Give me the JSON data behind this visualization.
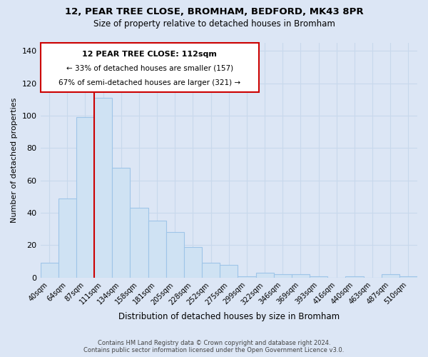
{
  "title": "12, PEAR TREE CLOSE, BROMHAM, BEDFORD, MK43 8PR",
  "subtitle": "Size of property relative to detached houses in Bromham",
  "xlabel": "Distribution of detached houses by size in Bromham",
  "ylabel": "Number of detached properties",
  "bar_labels": [
    "40sqm",
    "64sqm",
    "87sqm",
    "111sqm",
    "134sqm",
    "158sqm",
    "181sqm",
    "205sqm",
    "228sqm",
    "252sqm",
    "275sqm",
    "299sqm",
    "322sqm",
    "346sqm",
    "369sqm",
    "393sqm",
    "416sqm",
    "440sqm",
    "463sqm",
    "487sqm",
    "510sqm"
  ],
  "bar_values": [
    9,
    49,
    99,
    111,
    68,
    43,
    35,
    28,
    19,
    9,
    8,
    1,
    3,
    2,
    2,
    1,
    0,
    1,
    0,
    2,
    1
  ],
  "bar_color": "#cfe2f3",
  "bar_edge_color": "#9fc5e8",
  "highlight_line_index": 3,
  "highlight_line_color": "#cc0000",
  "ylim": [
    0,
    145
  ],
  "yticks": [
    0,
    20,
    40,
    60,
    80,
    100,
    120,
    140
  ],
  "annotation_title": "12 PEAR TREE CLOSE: 112sqm",
  "annotation_line1": "← 33% of detached houses are smaller (157)",
  "annotation_line2": "67% of semi-detached houses are larger (321) →",
  "annotation_box_color": "#ffffff",
  "annotation_box_edge": "#cc0000",
  "footer_line1": "Contains HM Land Registry data © Crown copyright and database right 2024.",
  "footer_line2": "Contains public sector information licensed under the Open Government Licence v3.0.",
  "background_color": "#dce6f5",
  "plot_bg_color": "#dce6f5",
  "grid_color": "#c8d8ec"
}
